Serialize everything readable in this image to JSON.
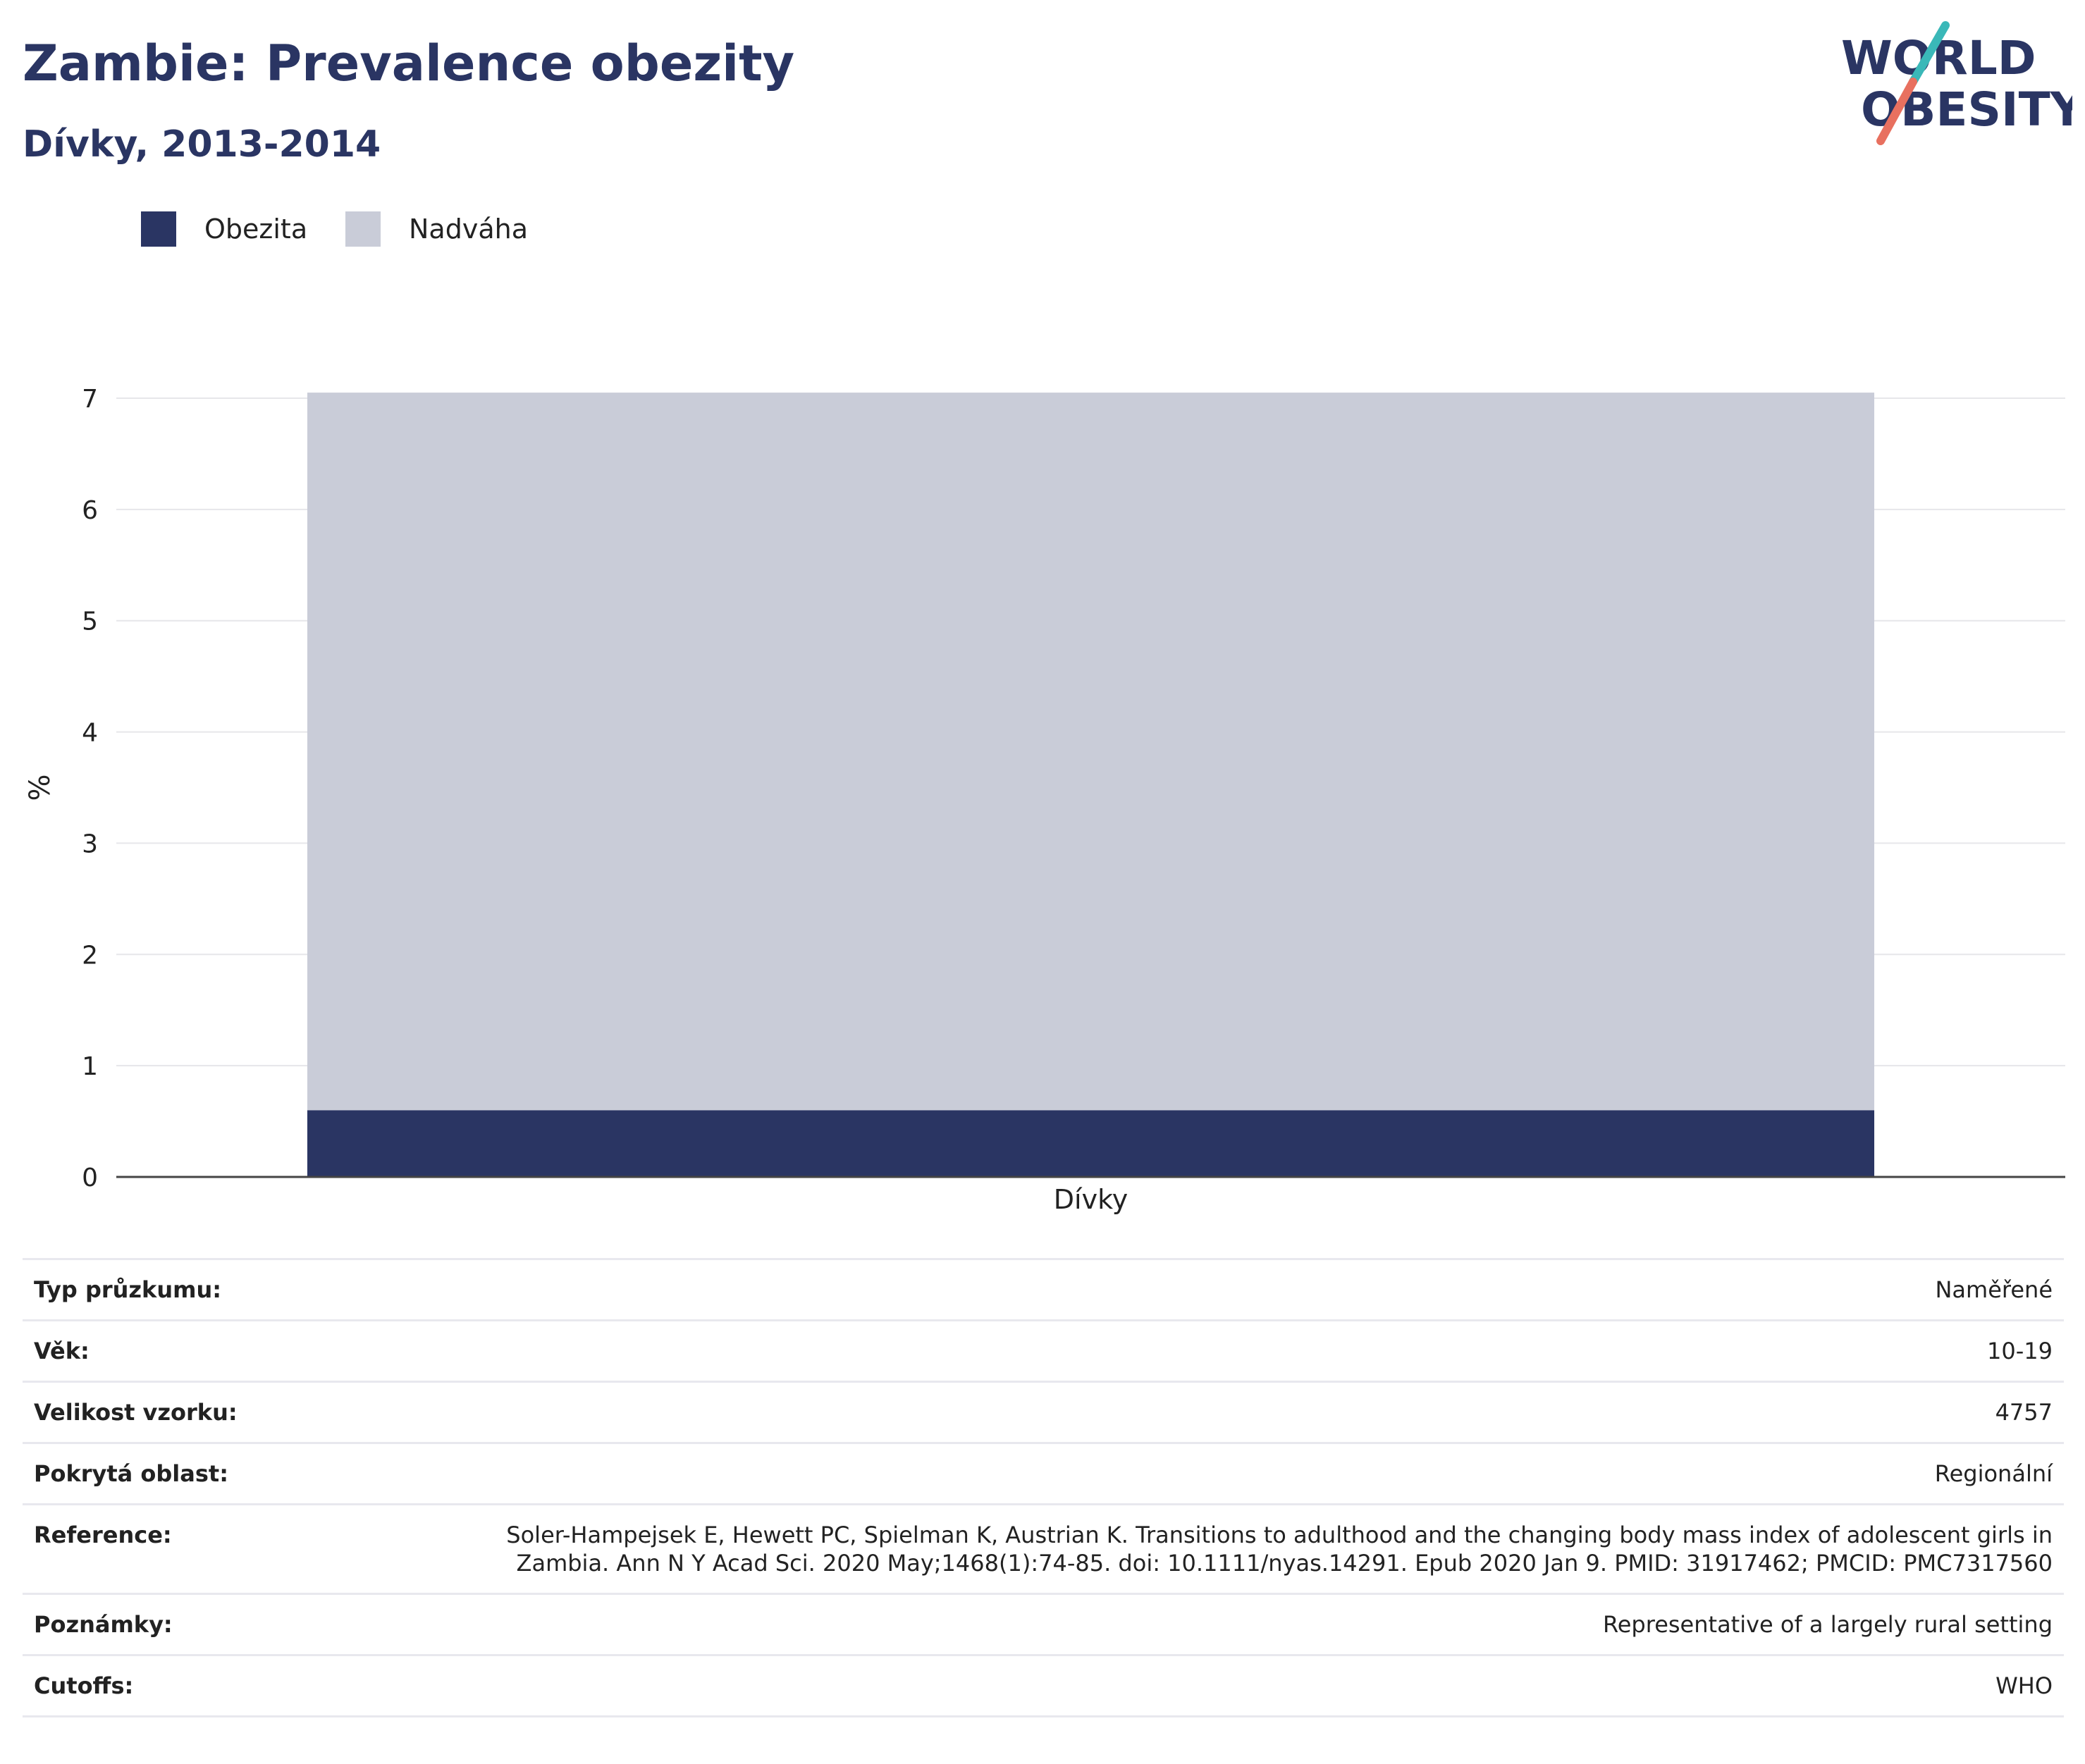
{
  "header": {
    "title": "Zambie: Prevalence obezity",
    "subtitle": "Dívky, 2013-2014"
  },
  "logo": {
    "line1": "WORLD",
    "line2": "OBESITY",
    "colors": {
      "text": "#2a3563",
      "slash_teal": "#3ab8b8",
      "slash_coral": "#e8705f"
    }
  },
  "chart_data": {
    "type": "bar",
    "stacked": true,
    "categories": [
      "Dívky"
    ],
    "series": [
      {
        "name": "Obezita",
        "values": [
          0.6
        ],
        "color": "#2a3563"
      },
      {
        "name": "Nadváha",
        "values": [
          6.45
        ],
        "color": "#c9ccd8"
      }
    ],
    "xlabel": "Dívky",
    "ylabel": "%",
    "ylim": [
      0,
      7
    ],
    "yticks": [
      "0",
      "1",
      "2",
      "3",
      "4",
      "5",
      "6",
      "7"
    ],
    "grid": true,
    "legend_position": "top-left"
  },
  "info": [
    {
      "label": "Typ průzkumu:",
      "value": "Naměřené"
    },
    {
      "label": "Věk:",
      "value": "10-19"
    },
    {
      "label": "Velikost vzorku:",
      "value": "4757"
    },
    {
      "label": "Pokrytá oblast:",
      "value": "Regionální"
    },
    {
      "label": "Reference:",
      "value": "Soler-Hampejsek E, Hewett PC, Spielman K, Austrian K. Transitions to adulthood and the changing body mass index of adolescent girls in Zambia. Ann N Y Acad Sci. 2020 May;1468(1):74-85. doi: 10.1111/nyas.14291. Epub 2020 Jan 9. PMID: 31917462; PMCID: PMC7317560"
    },
    {
      "label": "Poznámky:",
      "value": "Representative of a largely rural setting"
    },
    {
      "label": "Cutoffs:",
      "value": "WHO"
    }
  ]
}
